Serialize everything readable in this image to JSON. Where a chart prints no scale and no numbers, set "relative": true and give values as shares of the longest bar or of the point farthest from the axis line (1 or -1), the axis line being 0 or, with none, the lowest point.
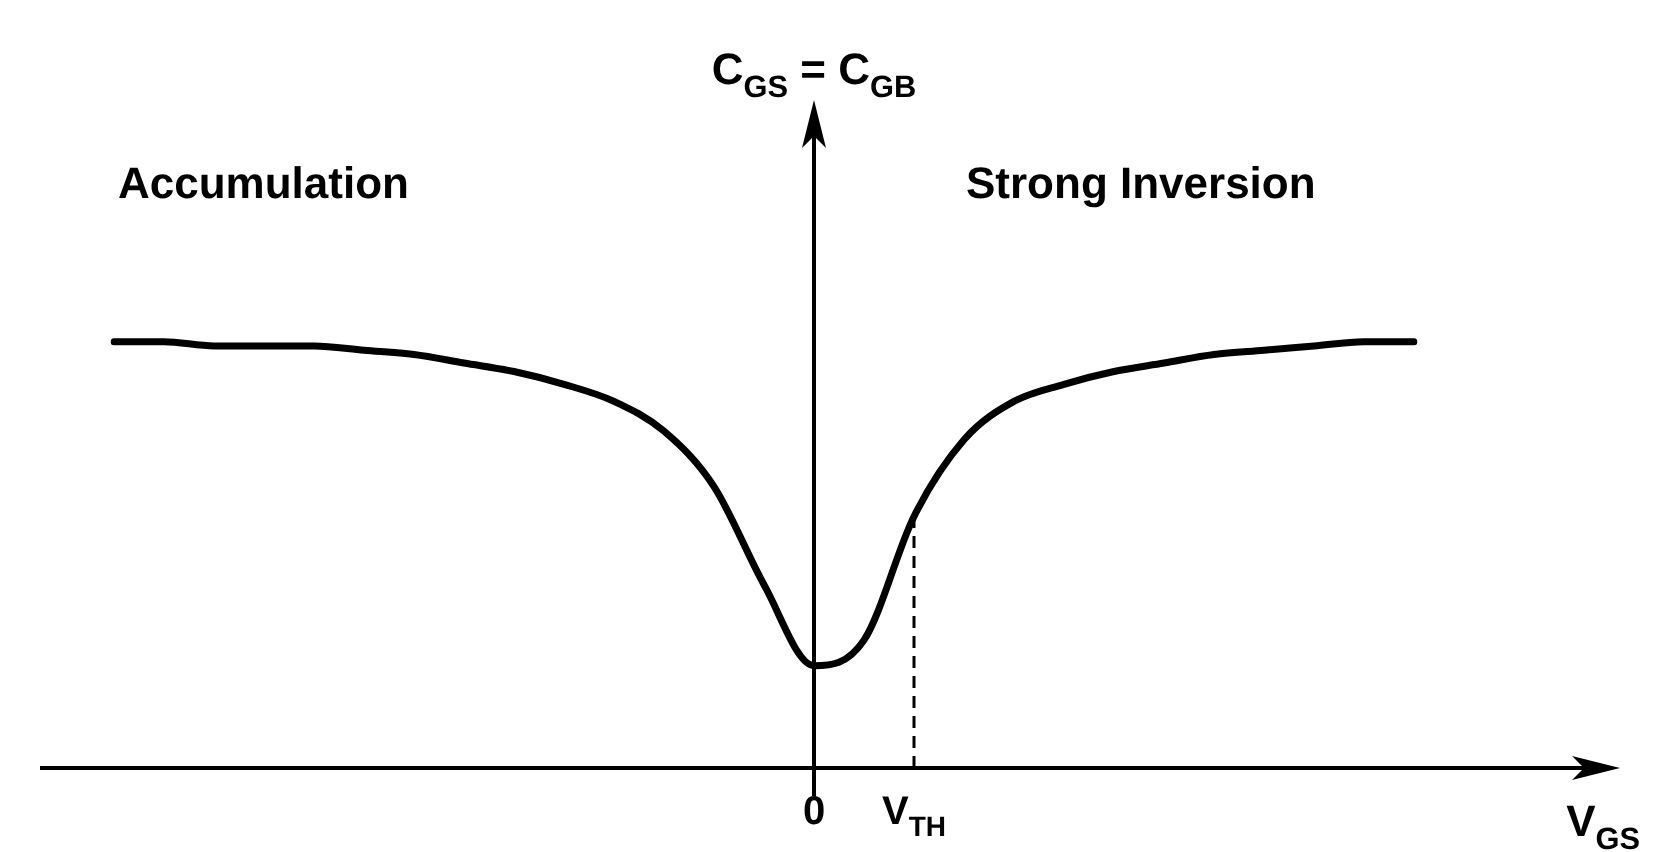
{
  "chart_data": {
    "type": "line",
    "relative": true,
    "xlabel": "V$_{GS}$",
    "annotations": [
      "Accumulation",
      "Strong Inversion",
      "C$_{GS}$ = C$_{GB}$"
    ],
    "categories": [
      null,
      null,
      null,
      null,
      null,
      null,
      null,
      null,
      null,
      null,
      null,
      null,
      null,
      null,
      "0",
      null,
      "V$_{TH}$",
      null,
      null,
      null,
      null,
      null,
      null,
      null,
      null,
      null,
      null
    ],
    "series": [
      {
        "color": "#000000",
        "values": [
          1.0,
          1.0,
          0.99,
          0.99,
          0.99,
          0.98,
          0.97,
          0.95,
          0.93,
          0.9,
          0.86,
          0.79,
          0.66,
          0.43,
          0.24,
          0.3,
          0.59,
          0.77,
          0.86,
          0.9,
          0.93,
          0.95,
          0.97,
          0.98,
          0.99,
          1.0,
          1.0
        ]
      }
    ],
    "ref_lines": [
      {
        "axis": "x",
        "value": "V$_{TH}$",
        "line_style": "dashed",
        "color": "#000000"
      }
    ],
    "legend": false,
    "marker": "none",
    "line_style": "solid"
  }
}
